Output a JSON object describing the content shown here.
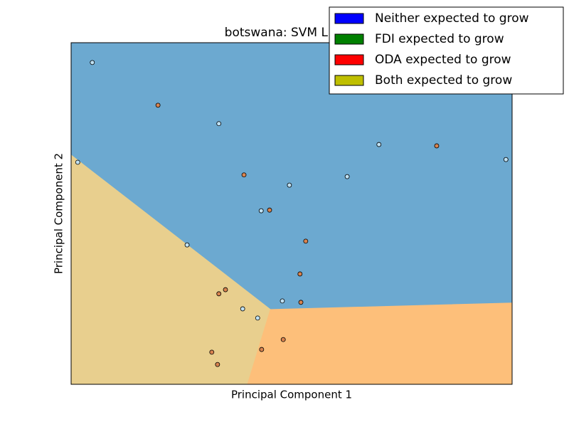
{
  "chart_data": {
    "type": "scatter",
    "title": "botswana: SVM Linear",
    "xlabel": "Principal Component 1",
    "ylabel": "Principal Component 2",
    "xlim": [
      0,
      1
    ],
    "ylim": [
      0,
      1
    ],
    "legend_position": "upper right",
    "legend": [
      {
        "name": "Neither expected to grow",
        "color": "#0000ff"
      },
      {
        "name": "FDI expected to grow",
        "color": "#008000"
      },
      {
        "name": "ODA expected to grow",
        "color": "#ff0000"
      },
      {
        "name": "Both expected to grow",
        "color": "#bfbf00"
      }
    ],
    "regions": [
      {
        "color": "#6ca9d0",
        "points": [
          [
            0,
            1
          ],
          [
            1,
            1
          ],
          [
            1,
            0.238
          ],
          [
            0.452,
            0.219
          ],
          [
            0,
            0.671
          ]
        ]
      },
      {
        "color": "#e8cf8e",
        "points": [
          [
            0,
            0.671
          ],
          [
            0.452,
            0.219
          ],
          [
            0.4,
            0
          ],
          [
            0,
            0
          ]
        ]
      },
      {
        "color": "#fdbf7a",
        "points": [
          [
            0.452,
            0.219
          ],
          [
            1,
            0.238
          ],
          [
            1,
            0
          ],
          [
            0.4,
            0
          ]
        ]
      }
    ],
    "x": [
      0.048,
      0.197,
      0.335,
      0.015,
      0.392,
      0.495,
      0.431,
      0.45,
      0.626,
      0.698,
      0.829,
      0.986,
      0.263,
      0.532,
      0.519,
      0.335,
      0.35,
      0.389,
      0.423,
      0.479,
      0.521,
      0.481,
      0.432,
      0.319,
      0.332
    ],
    "y": [
      0.942,
      0.817,
      0.763,
      0.65,
      0.613,
      0.583,
      0.508,
      0.51,
      0.608,
      0.702,
      0.698,
      0.658,
      0.408,
      0.419,
      0.323,
      0.265,
      0.277,
      0.221,
      0.194,
      0.244,
      0.24,
      0.131,
      0.102,
      0.094,
      0.058
    ],
    "colors": [
      "#bfe1f3",
      "#d8834f",
      "#bfe1f3",
      "#bfe1f3",
      "#d8834f",
      "#bfe1f3",
      "#bfe1f3",
      "#d8834f",
      "#bfe1f3",
      "#bfe1f3",
      "#d8834f",
      "#bfe1f3",
      "#bfe1f3",
      "#d8834f",
      "#d8834f",
      "#d8834f",
      "#d8834f",
      "#bfe1f3",
      "#bfe1f3",
      "#bfe1f3",
      "#d8834f",
      "#d8834f",
      "#d8834f",
      "#d8834f",
      "#d8834f"
    ]
  }
}
